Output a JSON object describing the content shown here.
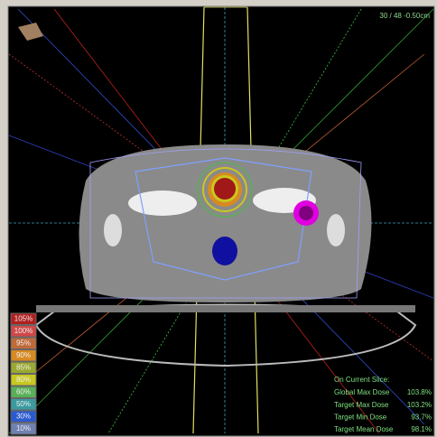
{
  "viewer": {
    "slice_label": "30 / 48 -0.50cm"
  },
  "isodose_legend": [
    {
      "label": "105%",
      "color": "#b02020"
    },
    {
      "label": "100%",
      "color": "#d04848"
    },
    {
      "label": "95%",
      "color": "#c06a3a"
    },
    {
      "label": "90%",
      "color": "#d88a20"
    },
    {
      "label": "85%",
      "color": "#9aa830"
    },
    {
      "label": "80%",
      "color": "#c8c820"
    },
    {
      "label": "60%",
      "color": "#58b058"
    },
    {
      "label": "50%",
      "color": "#3a9aa0"
    },
    {
      "label": "30%",
      "color": "#2a5ad0"
    },
    {
      "label": "10%",
      "color": "#7080b0"
    }
  ],
  "dose_stats": {
    "heading": "On Current Slice:",
    "rows": [
      {
        "label": "Global Max Dose",
        "value": "103.8%"
      },
      {
        "label": "Target Max Dose",
        "value": "103.2%"
      },
      {
        "label": "Target Min Dose",
        "value": "93.7%"
      },
      {
        "label": "Target Mean Dose",
        "value": "98.1%"
      }
    ]
  }
}
